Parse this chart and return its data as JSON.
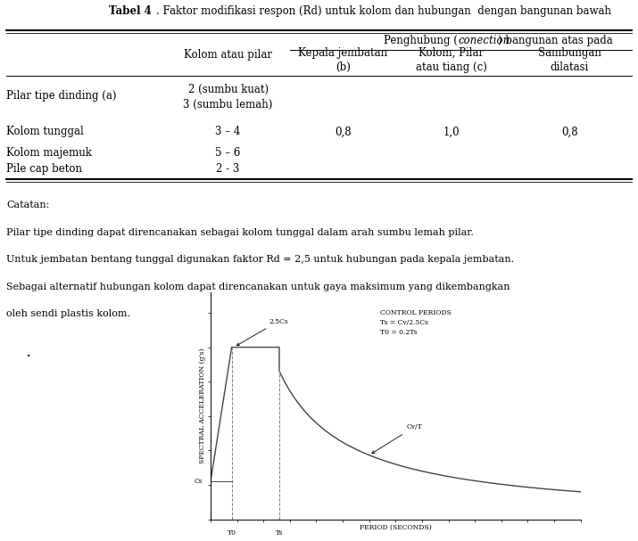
{
  "title_normal": ". Faktor modifikasi respon (Rd) untuk kolom dan hubungan  dengan bangunan bawah",
  "title_bold": "Tabel 4",
  "penghubung_header": "Penghubung (conection) bangunan atas pada",
  "col1_header": "Kolom atau pilar",
  "col2_header": "Kepala jembatan\n(b)",
  "col3_header": "Kolom, Pilar\natau tiang (c)",
  "col4_header": "Sambungan\ndilatasi",
  "row0_label": "Pilar tipe dinding (a)",
  "row0_col1a": "2 (sumbu kuat)",
  "row0_col1b": "3 (sumbu lemah)",
  "row1_label": "Kolom tunggal",
  "row1_col1": "3 – 4",
  "row1_col2": "0,8",
  "row1_col3": "1,0",
  "row1_col4": "0,8",
  "row2_label": "Kolom majemuk",
  "row2_col1": "5 – 6",
  "row3_label": "Pile cap beton",
  "row3_col1": "2 - 3",
  "catatan_title": "Catatan:",
  "catatan_lines": [
    "Pilar tipe dinding dapat direncanakan sebagai kolom tunggal dalam arah sumbu lemah pilar.",
    "Untuk jembatan bentang tunggal digunakan faktor Rd = 2,5 untuk hubungan pada kepala jembatan.",
    "Sebagai alternatif hubungan kolom dapat direncanakan untuk gaya maksimum yang dikembangkan",
    "oleh sendi plastis kolom."
  ],
  "chart_xlabel": "PERIOD (SECONDS)",
  "chart_ylabel": "SPECTRAL ACCELERATION (g's)",
  "label_2_5Cs": "2.5Cs",
  "label_CvT": "Cv/T",
  "label_Cs": "Cs",
  "control_line1": "CONTROL PERIODS",
  "control_line2": "Ts = Cv/2.5Cs",
  "control_line3": "T0 = 0.2Ts",
  "T0_label": "T0",
  "Ts_label": "Ts",
  "bg_color": "#ffffff",
  "line_color": "#444444",
  "fs_table": 8.5,
  "fs_notes": 8.0,
  "fs_chart": 5.5
}
